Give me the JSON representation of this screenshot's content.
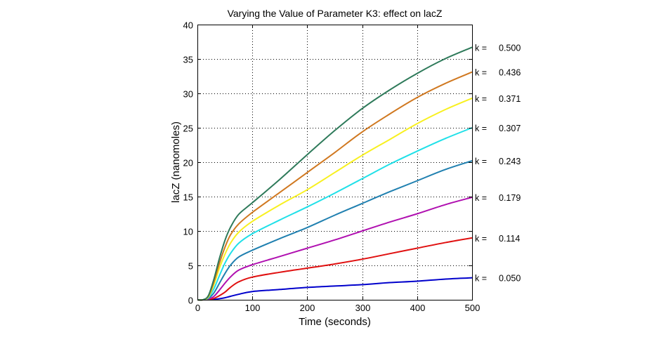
{
  "chart_data": {
    "type": "line",
    "title": "Varying the Value of Parameter K3: effect on lacZ",
    "xlabel": "Time (seconds)",
    "ylabel": "lacZ (nanomoles)",
    "xlim": [
      0,
      500
    ],
    "ylim": [
      0,
      40
    ],
    "xticks": [
      0,
      100,
      200,
      300,
      400,
      500
    ],
    "yticks": [
      0,
      5,
      10,
      15,
      20,
      25,
      30,
      35,
      40
    ],
    "grid": true,
    "grid_style": "dotted",
    "legend": "right-edge labels",
    "x": [
      0,
      10,
      20,
      30,
      40,
      50,
      60,
      75,
      100,
      150,
      200,
      250,
      300,
      350,
      400,
      450,
      500
    ],
    "series": [
      {
        "name": "k = 0.050",
        "k_prefix": "k =",
        "k_value": "0.050",
        "color": "#0000cc",
        "values": [
          0,
          0,
          0,
          0.05,
          0.15,
          0.3,
          0.5,
          0.8,
          1.2,
          1.5,
          1.8,
          2.0,
          2.2,
          2.5,
          2.7,
          3.0,
          3.2
        ]
      },
      {
        "name": "k = 0.114",
        "k_prefix": "k =",
        "k_value": "0.114",
        "color": "#e01010",
        "values": [
          0,
          0,
          0.05,
          0.2,
          0.6,
          1.1,
          1.8,
          2.6,
          3.3,
          4.0,
          4.6,
          5.2,
          5.9,
          6.7,
          7.5,
          8.3,
          9.0
        ]
      },
      {
        "name": "k = 0.179",
        "k_prefix": "k =",
        "k_value": "0.179",
        "color": "#b010b0",
        "values": [
          0,
          0,
          0.1,
          0.5,
          1.4,
          2.4,
          3.3,
          4.3,
          5.1,
          6.3,
          7.5,
          8.7,
          10.0,
          11.3,
          12.5,
          13.8,
          14.9
        ]
      },
      {
        "name": "k = 0.243",
        "k_prefix": "k =",
        "k_value": "0.243",
        "color": "#2080b0",
        "values": [
          0,
          0,
          0.2,
          1.0,
          2.4,
          3.8,
          5.0,
          6.2,
          7.2,
          8.9,
          10.5,
          12.3,
          14.0,
          15.7,
          17.3,
          18.9,
          20.2
        ]
      },
      {
        "name": "k = 0.307",
        "k_prefix": "k =",
        "k_value": "0.307",
        "color": "#20e0e8",
        "values": [
          0,
          0,
          0.3,
          1.6,
          3.5,
          5.3,
          6.7,
          8.2,
          9.6,
          11.6,
          13.5,
          15.5,
          17.6,
          19.7,
          21.6,
          23.4,
          25.0
        ]
      },
      {
        "name": "k = 0.371",
        "k_prefix": "k =",
        "k_value": "0.371",
        "color": "#f8f020",
        "values": [
          0,
          0,
          0.4,
          2.2,
          4.6,
          6.6,
          8.2,
          9.8,
          11.4,
          13.8,
          16.0,
          18.5,
          21.0,
          23.3,
          25.6,
          27.6,
          29.3
        ]
      },
      {
        "name": "k = 0.436",
        "k_prefix": "k =",
        "k_value": "0.436",
        "color": "#d07820",
        "values": [
          0,
          0,
          0.5,
          2.6,
          5.3,
          7.6,
          9.4,
          11.0,
          12.7,
          15.6,
          18.5,
          21.4,
          24.4,
          27.0,
          29.4,
          31.4,
          33.1
        ]
      },
      {
        "name": "k = 0.500",
        "k_prefix": "k =",
        "k_value": "0.500",
        "color": "#2e7a5a",
        "values": [
          0,
          0,
          0.6,
          3.0,
          6.0,
          8.6,
          10.5,
          12.4,
          14.1,
          17.5,
          21.1,
          24.6,
          27.8,
          30.5,
          32.9,
          35.0,
          36.7
        ]
      }
    ]
  }
}
